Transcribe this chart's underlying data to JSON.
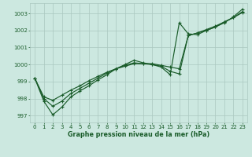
{
  "xlabel": "Graphe pression niveau de la mer (hPa)",
  "background_color": "#cce8e0",
  "grid_color": "#aac8c0",
  "line_color": "#1a5c2a",
  "text_color": "#1a5c2a",
  "xlim": [
    -0.5,
    23.5
  ],
  "ylim": [
    996.6,
    1003.6
  ],
  "yticks": [
    997,
    998,
    999,
    1000,
    1001,
    1002,
    1003
  ],
  "xticks": [
    0,
    1,
    2,
    3,
    4,
    5,
    6,
    7,
    8,
    9,
    10,
    11,
    12,
    13,
    14,
    15,
    16,
    17,
    18,
    19,
    20,
    21,
    22,
    23
  ],
  "series1": [
    999.2,
    998.1,
    997.9,
    998.2,
    998.5,
    998.75,
    999.05,
    999.3,
    999.55,
    999.75,
    999.9,
    1000.05,
    1000.05,
    1000.05,
    999.95,
    999.85,
    999.75,
    1001.7,
    1001.85,
    1002.05,
    1002.25,
    1002.5,
    1002.75,
    1003.05
  ],
  "series2": [
    999.2,
    997.85,
    997.05,
    997.5,
    998.1,
    998.45,
    998.75,
    999.1,
    999.4,
    999.75,
    1000.0,
    1000.25,
    1000.1,
    1000.0,
    999.85,
    999.4,
    1002.45,
    1001.8,
    1001.75,
    1002.0,
    1002.2,
    1002.45,
    1002.8,
    1003.25
  ],
  "series3": [
    999.2,
    998.0,
    997.55,
    997.85,
    998.3,
    998.6,
    998.9,
    999.2,
    999.5,
    999.75,
    999.95,
    1000.1,
    1000.05,
    1000.0,
    999.9,
    999.6,
    999.45,
    1001.7,
    1001.85,
    1002.0,
    1002.2,
    1002.5,
    1002.75,
    1003.1
  ]
}
